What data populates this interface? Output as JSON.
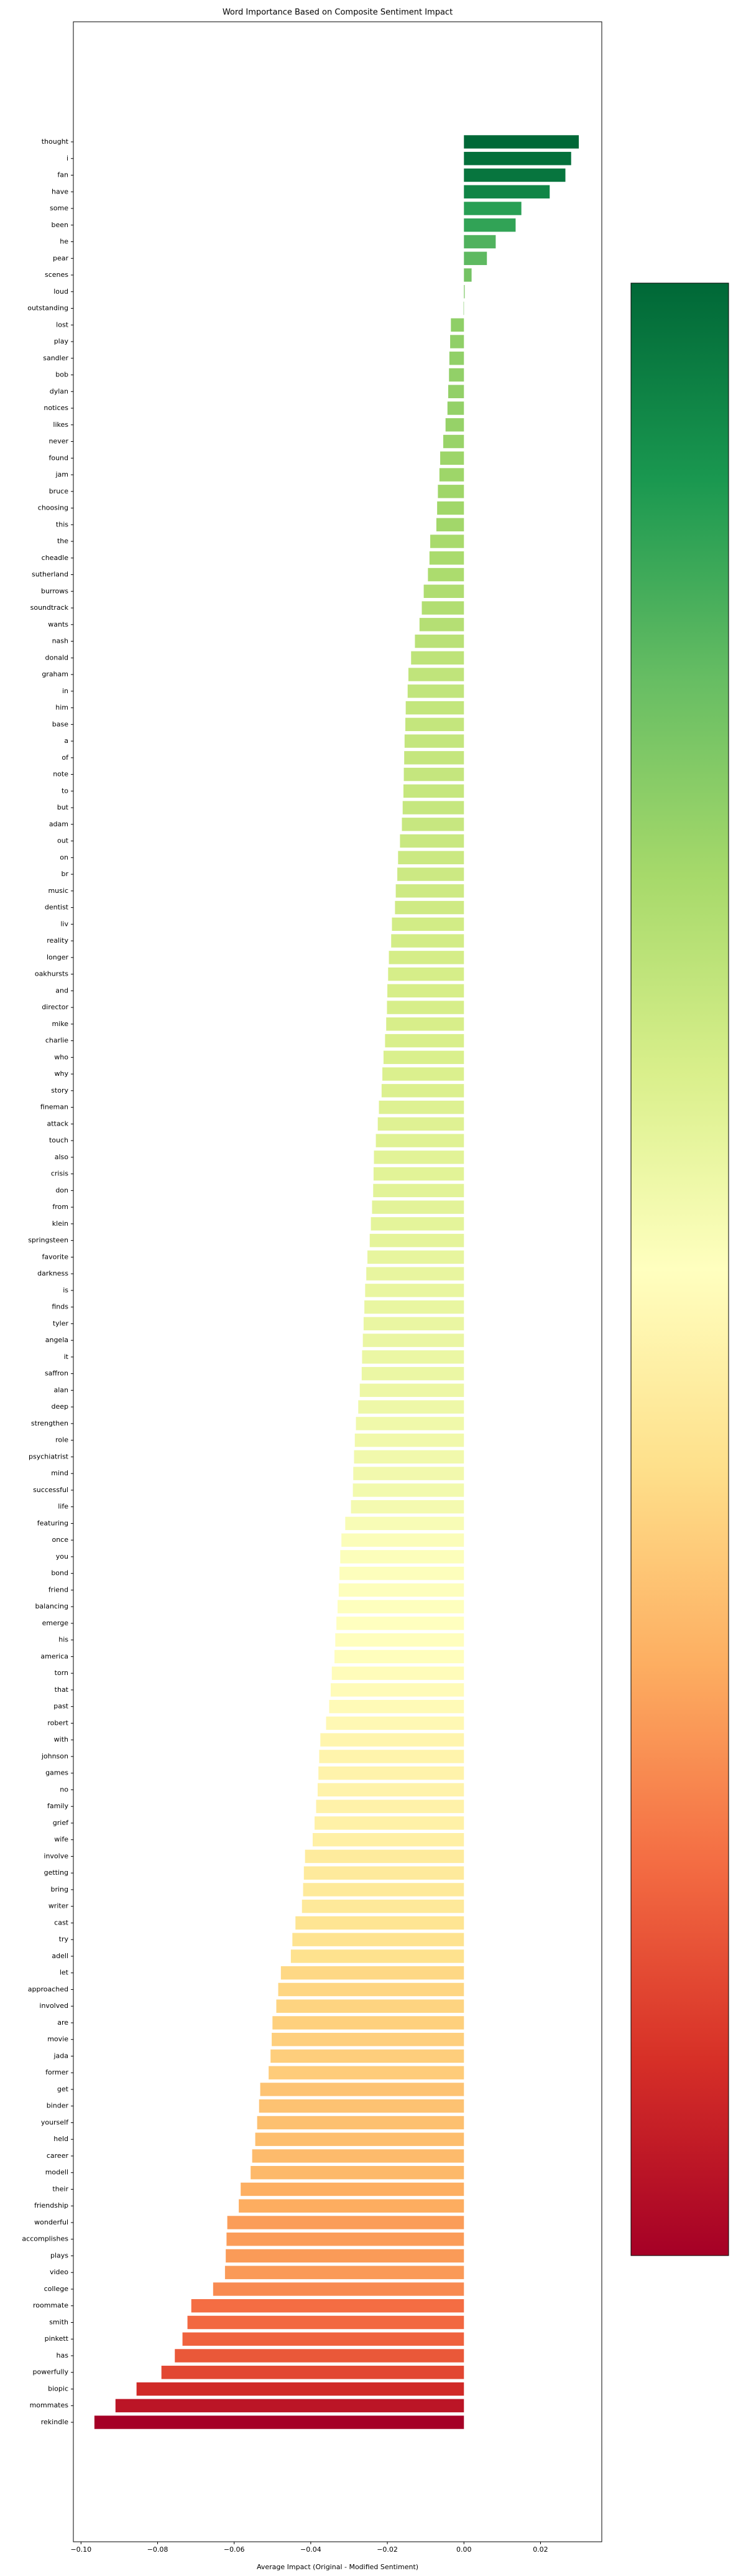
{
  "chart_data": {
    "type": "barh",
    "title": "Word Importance Based on Composite Sentiment Impact",
    "x_label": "Average Impact (Original - Modified Sentiment)",
    "colormap": [
      "#a50026",
      "#d73027",
      "#f46d43",
      "#fdae61",
      "#fee08b",
      "#ffffbf",
      "#d9ef8b",
      "#a6d96a",
      "#66bd63",
      "#1a9850",
      "#006837"
    ],
    "colorbar": true,
    "xlim": [
      -0.102,
      0.036
    ],
    "xticks": [
      {
        "value": -0.1,
        "label": "−0.10"
      },
      {
        "value": -0.08,
        "label": "−0.08"
      },
      {
        "value": -0.06,
        "label": "−0.06"
      },
      {
        "value": -0.04,
        "label": "−0.04"
      },
      {
        "value": -0.02,
        "label": "−0.02"
      },
      {
        "value": 0,
        "label": "0.00"
      },
      {
        "value": 0.02,
        "label": "0.02"
      }
    ],
    "categories": [
      "thought",
      "i",
      "fan",
      "have",
      "some",
      "been",
      "he",
      "pear",
      "scenes",
      "loud",
      "outstanding",
      "lost",
      "play",
      "sandler",
      "bob",
      "dylan",
      "notices",
      "likes",
      "never",
      "found",
      "jam",
      "bruce",
      "choosing",
      "this",
      "the",
      "cheadle",
      "sutherland",
      "burrows",
      "soundtrack",
      "wants",
      "nash",
      "donald",
      "graham",
      "in",
      "him",
      "base",
      "a",
      "of",
      "note",
      "to",
      "but",
      "adam",
      "out",
      "on",
      "br",
      "music",
      "dentist",
      "liv",
      "reality",
      "longer",
      "oakhursts",
      "and",
      "director",
      "mike",
      "charlie",
      "who",
      "why",
      "story",
      "fineman",
      "attack",
      "touch",
      "also",
      "crisis",
      "don",
      "from",
      "klein",
      "springsteen",
      "favorite",
      "darkness",
      "is",
      "finds",
      "tyler",
      "angela",
      "it",
      "saffron",
      "alan",
      "deep",
      "strengthen",
      "role",
      "psychiatrist",
      "mind",
      "successful",
      "life",
      "featuring",
      "once",
      "you",
      "bond",
      "friend",
      "balancing",
      "emerge",
      "his",
      "america",
      "torn",
      "that",
      "past",
      "robert",
      "with",
      "johnson",
      "games",
      "no",
      "family",
      "grief",
      "wife",
      "involve",
      "getting",
      "bring",
      "writer",
      "cast",
      "try",
      "adell",
      "let",
      "approached",
      "involved",
      "are",
      "movie",
      "jada",
      "former",
      "get",
      "binder",
      "yourself",
      "held",
      "career",
      "modell",
      "their",
      "friendship",
      "wonderful",
      "accomplishes",
      "plays",
      "video",
      "college",
      "roommate",
      "smith",
      "pinkett",
      "has",
      "powerfully",
      "biopic",
      "mommates",
      "rekindle"
    ],
    "values": [
      0.03,
      0.028,
      0.0265,
      0.0224,
      0.015,
      0.0135,
      0.0083,
      0.006,
      0.002,
      0.0002,
      -0.0001,
      -0.0034,
      -0.0036,
      -0.0038,
      -0.0039,
      -0.0041,
      -0.0043,
      -0.0048,
      -0.0054,
      -0.0062,
      -0.0064,
      -0.0068,
      -0.007,
      -0.0072,
      -0.0088,
      -0.009,
      -0.0094,
      -0.0105,
      -0.011,
      -0.0116,
      -0.0128,
      -0.0138,
      -0.0145,
      -0.0147,
      -0.0152,
      -0.0153,
      -0.0155,
      -0.0156,
      -0.0157,
      -0.0158,
      -0.016,
      -0.0162,
      -0.0167,
      -0.0172,
      -0.0174,
      -0.0178,
      -0.018,
      -0.0188,
      -0.019,
      -0.0196,
      -0.0198,
      -0.02,
      -0.0201,
      -0.0203,
      -0.0206,
      -0.021,
      -0.0213,
      -0.0215,
      -0.0222,
      -0.0225,
      -0.023,
      -0.0235,
      -0.0236,
      -0.0237,
      -0.024,
      -0.0243,
      -0.0246,
      -0.0252,
      -0.0255,
      -0.0258,
      -0.026,
      -0.0262,
      -0.0264,
      -0.0266,
      -0.0267,
      -0.0272,
      -0.0276,
      -0.0282,
      -0.0285,
      -0.0287,
      -0.0289,
      -0.029,
      -0.0295,
      -0.031,
      -0.032,
      -0.0323,
      -0.0325,
      -0.0327,
      -0.033,
      -0.0333,
      -0.0336,
      -0.0338,
      -0.0345,
      -0.0348,
      -0.0352,
      -0.036,
      -0.0375,
      -0.0378,
      -0.038,
      -0.0382,
      -0.0386,
      -0.039,
      -0.0395,
      -0.0415,
      -0.0418,
      -0.042,
      -0.0423,
      -0.044,
      -0.0448,
      -0.0452,
      -0.0478,
      -0.0485,
      -0.049,
      -0.05,
      -0.0502,
      -0.0505,
      -0.051,
      -0.0532,
      -0.0535,
      -0.054,
      -0.0545,
      -0.0553,
      -0.0557,
      -0.0583,
      -0.0588,
      -0.0618,
      -0.062,
      -0.0622,
      -0.0624,
      -0.0655,
      -0.0712,
      -0.0722,
      -0.0735,
      -0.0755,
      -0.079,
      -0.0855,
      -0.091,
      -0.0965
    ]
  }
}
